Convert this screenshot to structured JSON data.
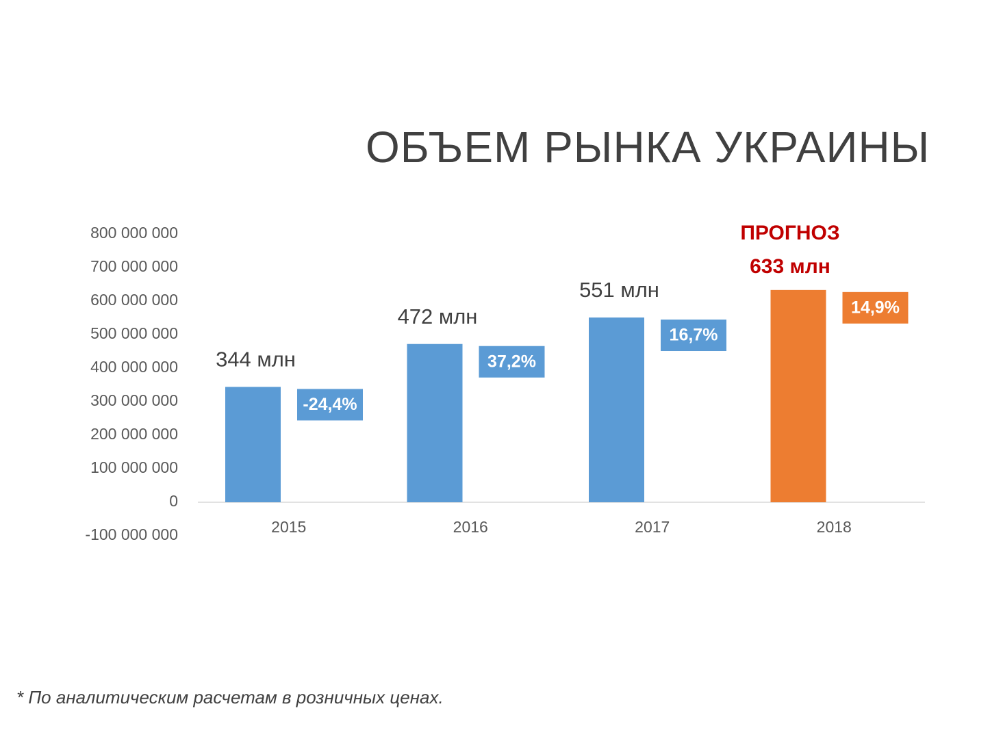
{
  "slide": {
    "title": "ОБЪЕМ РЫНКА УКРАИНЫ",
    "footnote": "* По аналитическим расчетам в розничных ценах."
  },
  "chart_data": {
    "type": "bar",
    "title": "",
    "xlabel": "",
    "ylabel": "",
    "categories": [
      "2015",
      "2016",
      "2017",
      "2018"
    ],
    "values": [
      344000000,
      472000000,
      551000000,
      633000000
    ],
    "value_labels": [
      "344 млн",
      "472 млн",
      "551 млн",
      "633 млн"
    ],
    "change_labels": [
      "-24,4%",
      "37,2%",
      "16,7%",
      "14,9%"
    ],
    "forecast_label": "ПРОГНОЗ",
    "forecast_index": 3,
    "ylim": [
      -100000000,
      800000000
    ],
    "y_ticks": [
      {
        "value": 800000000,
        "label": "800 000 000"
      },
      {
        "value": 700000000,
        "label": "700 000 000"
      },
      {
        "value": 600000000,
        "label": "600 000 000"
      },
      {
        "value": 500000000,
        "label": "500 000 000"
      },
      {
        "value": 400000000,
        "label": "400 000 000"
      },
      {
        "value": 300000000,
        "label": "300 000 000"
      },
      {
        "value": 200000000,
        "label": "200 000 000"
      },
      {
        "value": 100000000,
        "label": "100 000 000"
      },
      {
        "value": 0,
        "label": "0"
      },
      {
        "value": -100000000,
        "label": "-100 000 000"
      }
    ],
    "grid": false,
    "legend": "none",
    "colors": {
      "actual": "#5B9BD5",
      "forecast": "#ED7D31",
      "forecast_text": "#C00000",
      "axis_text": "#595959",
      "label_text": "#404040"
    }
  }
}
